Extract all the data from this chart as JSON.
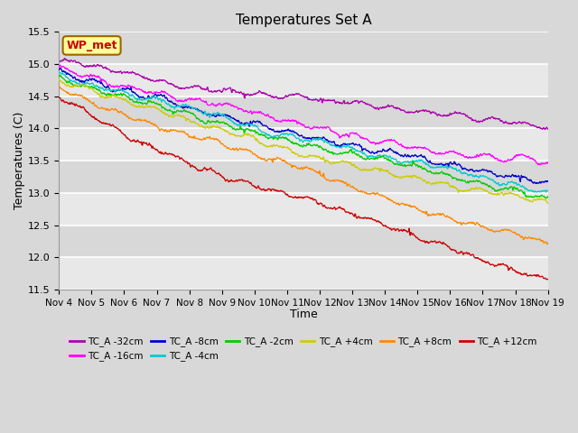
{
  "title": "Temperatures Set A",
  "xlabel": "Time",
  "ylabel": "Temperatures (C)",
  "ylim": [
    11.5,
    15.5
  ],
  "xlim": [
    0,
    360
  ],
  "wp_met_label": "WP_met",
  "wp_met_bg": "#ffff99",
  "wp_met_border": "#996600",
  "wp_met_text": "#cc0000",
  "x_tick_labels": [
    "Nov 4",
    "Nov 5",
    "Nov 6",
    "Nov 7",
    "Nov 8",
    "Nov 9",
    "Nov 10",
    "Nov 11",
    "Nov 12",
    "Nov 13",
    "Nov 14",
    "Nov 15",
    "Nov 16",
    "Nov 17",
    "Nov 18",
    "Nov 19"
  ],
  "series": [
    {
      "label": "TC_A -32cm",
      "color": "#aa00aa",
      "start": 15.05,
      "end": 14.0
    },
    {
      "label": "TC_A -16cm",
      "color": "#ff00ff",
      "start": 14.95,
      "end": 13.45
    },
    {
      "label": "TC_A -8cm",
      "color": "#0000cc",
      "start": 14.9,
      "end": 13.15
    },
    {
      "label": "TC_A -4cm",
      "color": "#00cccc",
      "start": 14.85,
      "end": 13.0
    },
    {
      "label": "TC_A -2cm",
      "color": "#00cc00",
      "start": 14.8,
      "end": 12.9
    },
    {
      "label": "TC_A +4cm",
      "color": "#cccc00",
      "start": 14.75,
      "end": 12.85
    },
    {
      "label": "TC_A +8cm",
      "color": "#ff8800",
      "start": 14.65,
      "end": 12.2
    },
    {
      "label": "TC_A +12cm",
      "color": "#cc0000",
      "start": 14.5,
      "end": 11.65
    }
  ]
}
